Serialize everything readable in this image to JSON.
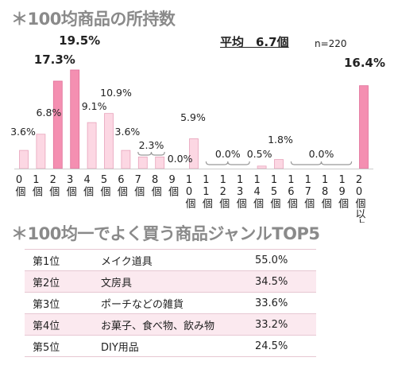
{
  "titles": {
    "ownership": "＊100均商品の所持数",
    "top5": "＊100均一でよく買う商品ジャンルTOP5"
  },
  "average": "平均　6.7個",
  "sample_size": "n=220",
  "colors": {
    "bar_light": "#fcd7e3",
    "bar_light_stroke": "#e8a3bb",
    "bar_highlight": "#f48fb1",
    "bar_highlight_stroke": "#e0709a",
    "bracket": "#999999",
    "title": "#8a8a8a"
  },
  "chart_data": {
    "type": "bar",
    "title": "＊100均商品の所持数",
    "categories": [
      "0個",
      "1個",
      "2個",
      "3個",
      "4個",
      "5個",
      "6個",
      "7個",
      "8個",
      "9個",
      "10個",
      "11個",
      "12個",
      "13個",
      "14個",
      "15個",
      "16個",
      "17個",
      "18個",
      "19個",
      "20個以上"
    ],
    "values": [
      3.6,
      6.8,
      17.3,
      19.5,
      9.1,
      10.9,
      3.6,
      2.3,
      2.3,
      0.0,
      5.9,
      0.0,
      0.0,
      0.0,
      0.5,
      1.8,
      0.0,
      0.0,
      0.0,
      0.0,
      16.4
    ],
    "highlighted": [
      2,
      3,
      20
    ],
    "data_labels": [
      {
        "text": "3.6%",
        "bar": 0
      },
      {
        "text": "6.8%",
        "bar": 1
      },
      {
        "text": "17.3%",
        "bar": 2,
        "bold": true
      },
      {
        "text": "19.5%",
        "bar": 3,
        "bold": true
      },
      {
        "text": "9.1%",
        "bar": 4
      },
      {
        "text": "10.9%",
        "bar": 5
      },
      {
        "text": "3.6%",
        "bar": 6
      },
      {
        "text": "2.3%",
        "bars": [
          7,
          8
        ]
      },
      {
        "text": "0.0%",
        "bar": 9
      },
      {
        "text": "5.9%",
        "bar": 10
      },
      {
        "text": "0.0%",
        "bars": [
          11,
          12,
          13
        ]
      },
      {
        "text": "0.5%",
        "bar": 14
      },
      {
        "text": "1.8%",
        "bar": 15
      },
      {
        "text": "0.0%",
        "bars": [
          16,
          17,
          18,
          19
        ]
      },
      {
        "text": "16.4%",
        "bar": 20,
        "bold": true
      }
    ],
    "ylim": [
      0,
      20
    ],
    "xlabel": "",
    "ylabel": "",
    "grid": false
  },
  "top5": {
    "rows": [
      {
        "rank": "第1位",
        "genre": "メイク道具",
        "pct": "55.0%"
      },
      {
        "rank": "第2位",
        "genre": "文房具",
        "pct": "34.5%"
      },
      {
        "rank": "第3位",
        "genre": "ポーチなどの雑貨",
        "pct": "33.6%"
      },
      {
        "rank": "第4位",
        "genre": "お菓子、食べ物、飲み物",
        "pct": "33.2%"
      },
      {
        "rank": "第5位",
        "genre": "DIY用品",
        "pct": "24.5%"
      }
    ]
  }
}
